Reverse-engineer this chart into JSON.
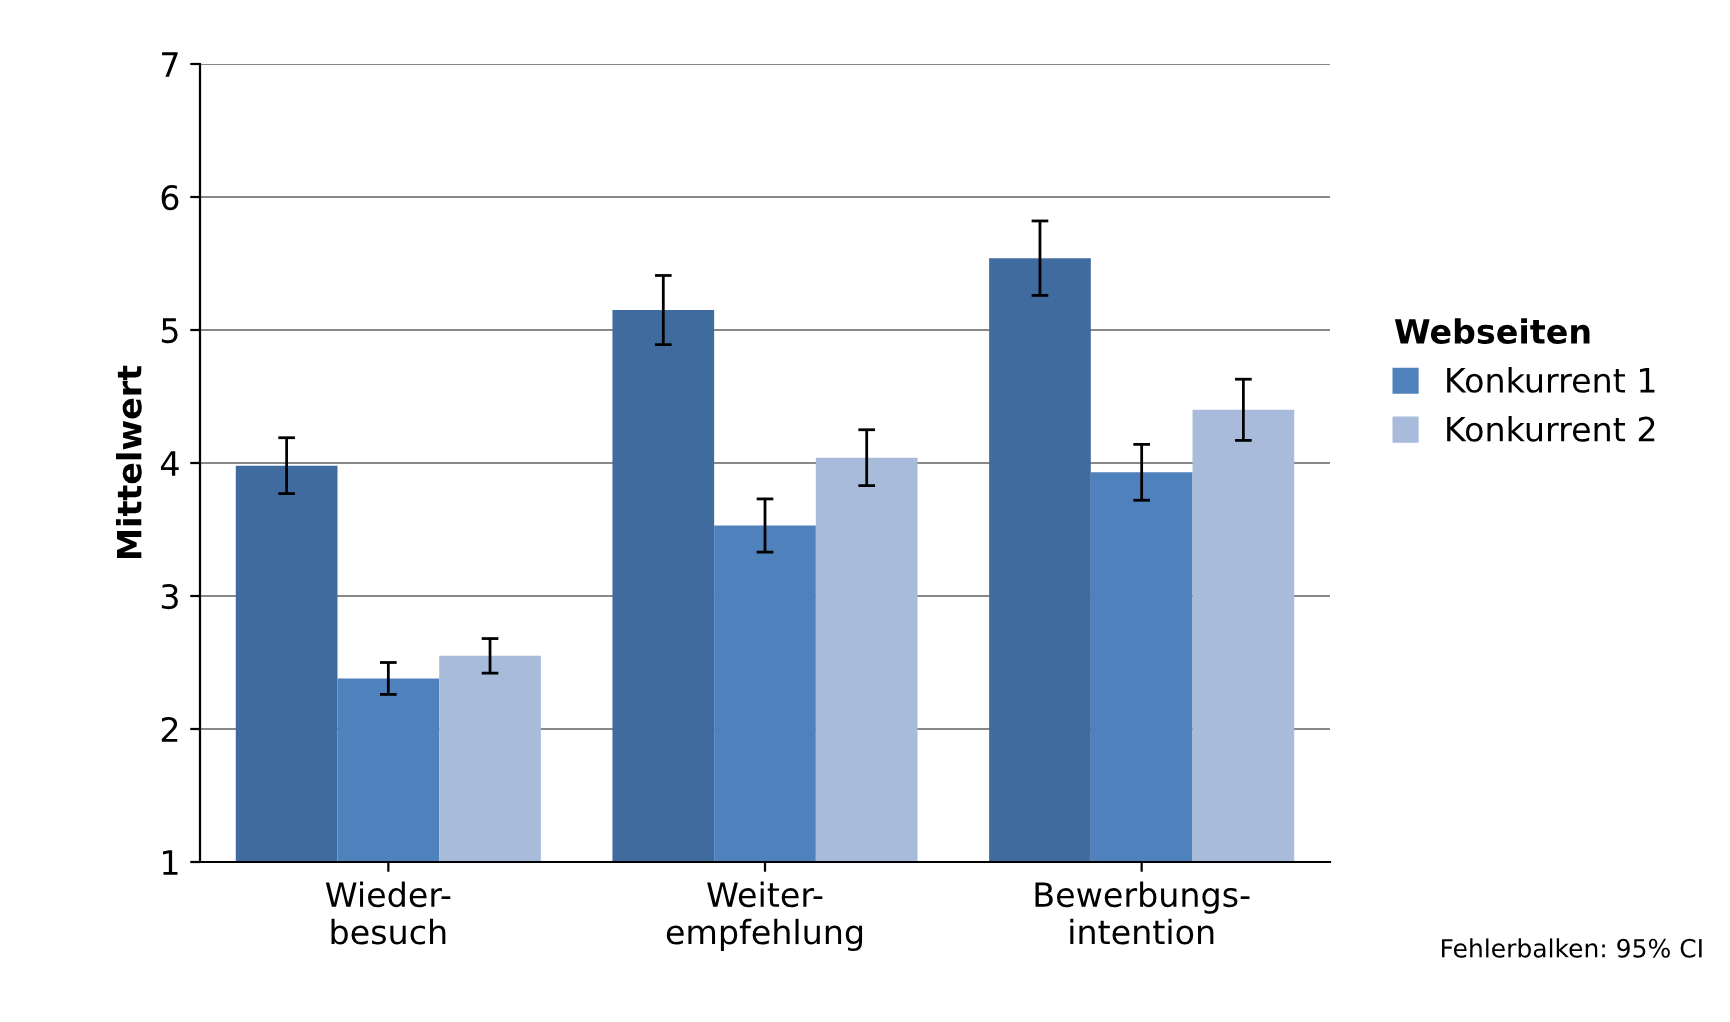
{
  "chart_data": {
    "type": "bar",
    "ylabel": "Mittelwert",
    "legend_title": "Webseiten",
    "categories": [
      "Wieder-\nbesuch",
      "Weiter-\nempfehlung",
      "Bewerbungs-\nintention"
    ],
    "series": [
      {
        "color": "#3f6b9e",
        "values": [
          3.98,
          5.15,
          5.54
        ],
        "errors": [
          0.21,
          0.26,
          0.28
        ]
      },
      {
        "name": "Konkurrent 1",
        "color": "#4f81bd",
        "values": [
          2.38,
          3.53,
          3.93
        ],
        "errors": [
          0.12,
          0.2,
          0.21
        ]
      },
      {
        "name": "Konkurrent 2",
        "color": "#a9bbdb",
        "values": [
          2.55,
          4.04,
          4.4
        ],
        "errors": [
          0.13,
          0.21,
          0.23
        ]
      }
    ],
    "ylim": [
      1,
      7
    ],
    "yticks": [
      1,
      2,
      3,
      4,
      5,
      6,
      7
    ],
    "grid": "y",
    "legend": "right",
    "annotations": [
      "Fehlerbalken: 95% CI"
    ]
  }
}
